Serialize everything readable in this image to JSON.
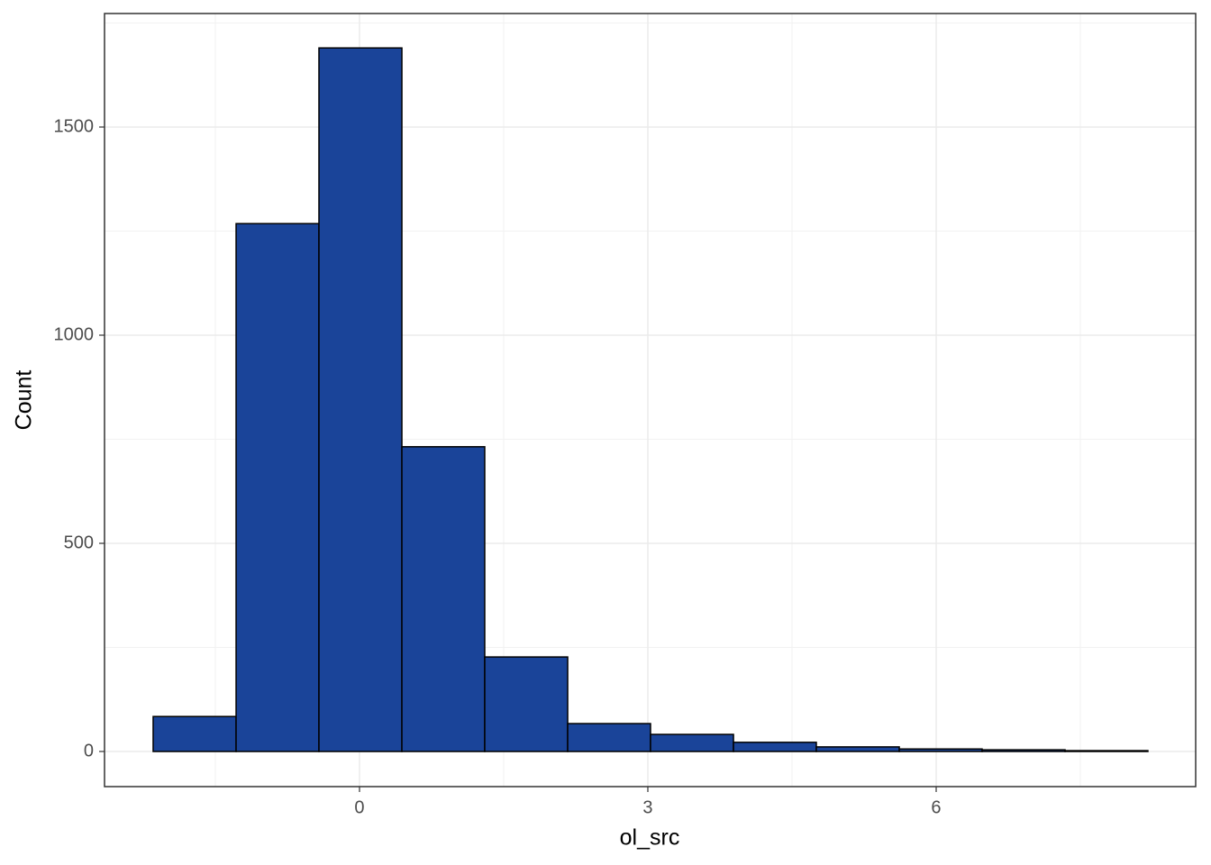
{
  "chart_data": {
    "type": "histogram",
    "x_label": "ol_src",
    "y_label": "Count",
    "bins": [
      -2.147,
      -1.284,
      -0.422,
      0.441,
      1.303,
      2.166,
      3.028,
      3.891,
      4.753,
      5.616,
      6.478,
      7.341,
      8.203
    ],
    "values": [
      84,
      1268,
      1690,
      732,
      227,
      67,
      41,
      22,
      11,
      6,
      4,
      2
    ],
    "color": "#1a4499",
    "edge_color": "#000000",
    "xlim": [
      -2.653,
      8.7
    ],
    "ylim": [
      -84.4,
      1772.7
    ],
    "xticks": [
      0,
      3,
      6
    ],
    "yticks": [
      0,
      500,
      1000,
      1500
    ],
    "grid": true,
    "minor_grid": true
  }
}
